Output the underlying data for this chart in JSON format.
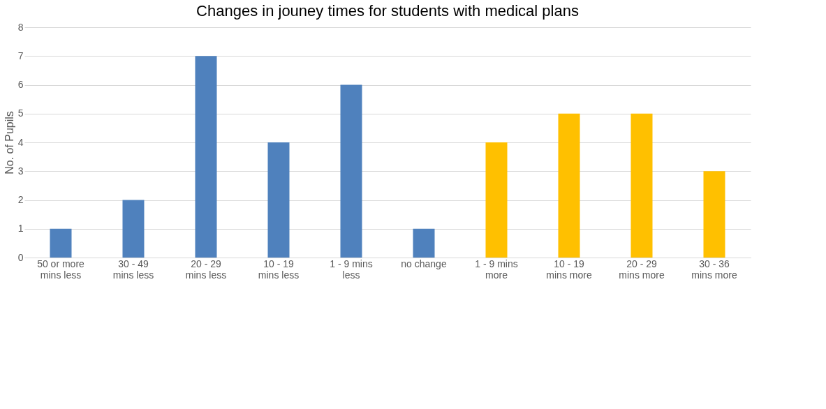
{
  "chart_data": {
    "type": "bar",
    "title": "Changes in jouney times for students with medical plans",
    "ylabel": "No. of Pupils",
    "categories": [
      "50 or more mins less",
      "30 - 49 mins less",
      "20 - 29 mins less",
      "10 - 19 mins less",
      "1 - 9 mins less",
      "no change",
      "1 - 9 mins more",
      "10 - 19 mins more",
      "20 - 29 mins more",
      "30 - 36 mins more"
    ],
    "values": [
      1,
      2,
      7,
      4,
      6,
      1,
      4,
      5,
      5,
      3
    ],
    "colors": [
      "#4f81bd",
      "#4f81bd",
      "#4f81bd",
      "#4f81bd",
      "#4f81bd",
      "#4f81bd",
      "#ffc000",
      "#ffc000",
      "#ffc000",
      "#ffc000"
    ],
    "ylim": [
      0,
      8
    ],
    "yticks": [
      0,
      1,
      2,
      3,
      4,
      5,
      6,
      7,
      8
    ],
    "grid": "y"
  }
}
